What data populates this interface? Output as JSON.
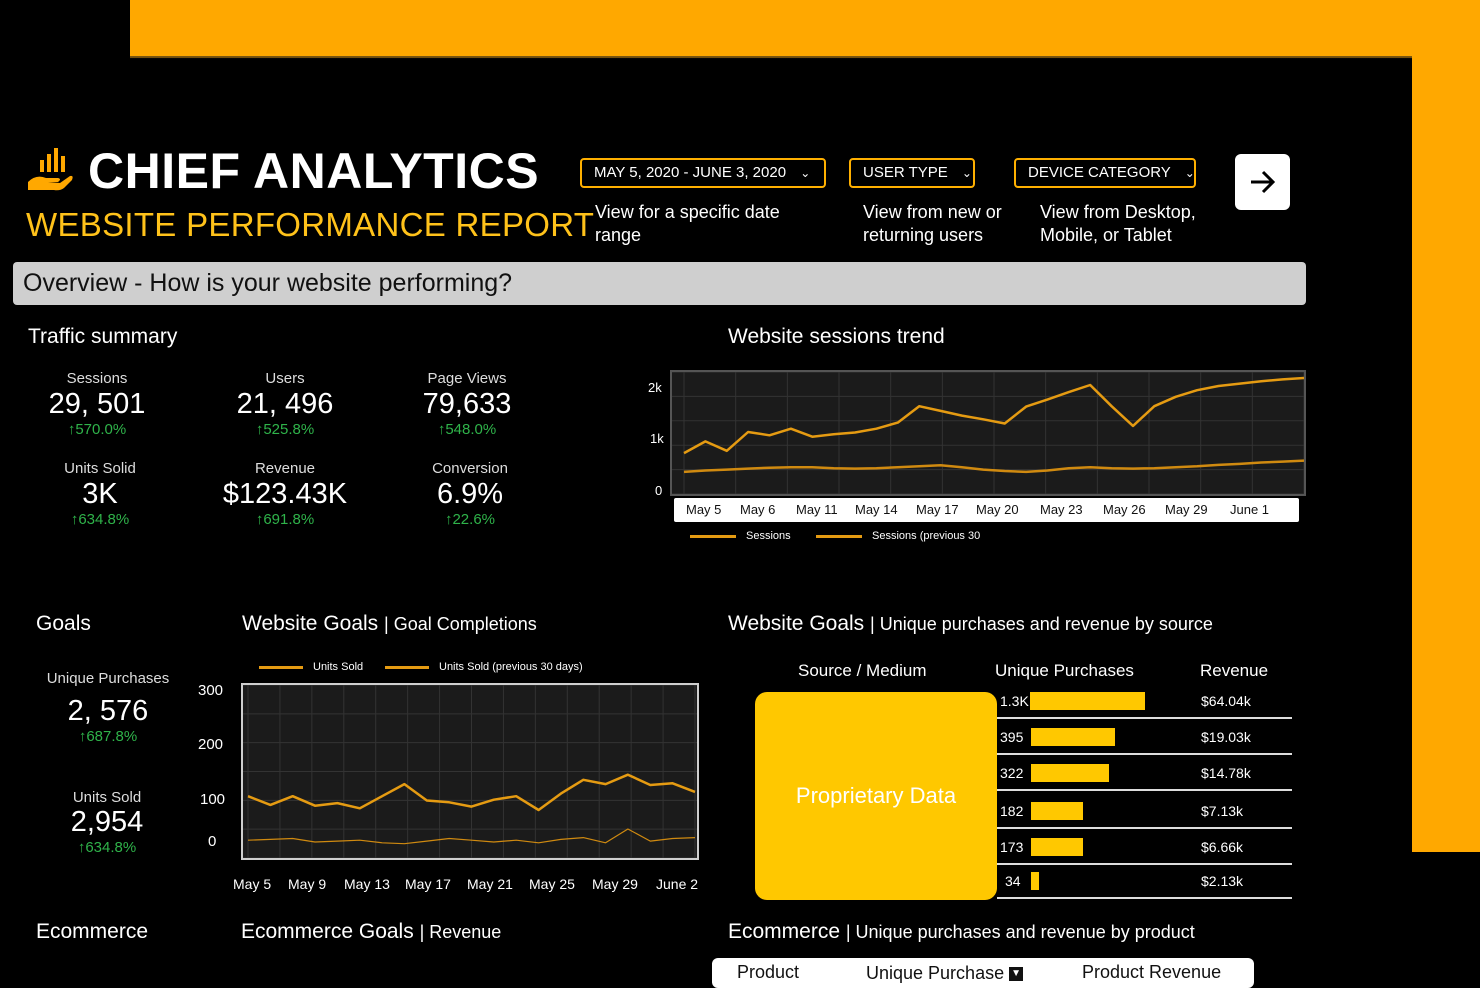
{
  "header": {
    "title": "CHIEF ANALYTICS",
    "subtitle": "WEBSITE PERFORMANCE REPORT"
  },
  "filters": [
    {
      "label": "MAY 5, 2020 - JUNE 3, 2020",
      "help": "View for a specific date range"
    },
    {
      "label": "USER TYPE",
      "help": "View from new or returning users"
    },
    {
      "label": "DEVICE CATEGORY",
      "help": "View from Desktop, Mobile, or Tablet"
    }
  ],
  "colors": {
    "accent": "#ffa800",
    "positive": "#2fb34a",
    "banner": "#cfcfcf",
    "line": "#e59b12",
    "bar": "#ffc800"
  },
  "icons": {
    "next": "arrow-right-icon",
    "logo": "hand-bar-chart-icon",
    "dropdown": "chevron-down-icon"
  },
  "overview": {
    "title": "Overview - How is your website performing?"
  },
  "traffic": {
    "title": "Traffic summary",
    "kpis": [
      {
        "label": "Sessions",
        "value": "29, 501",
        "change": "↑570.0%"
      },
      {
        "label": "Users",
        "value": "21, 496",
        "change": "↑525.8%"
      },
      {
        "label": "Page Views",
        "value": "79,633",
        "change": "↑548.0%"
      },
      {
        "label": "Units Solid",
        "value": "3K",
        "change": "↑634.8%"
      },
      {
        "label": "Revenue",
        "value": "$123.43K",
        "change": "↑691.8%"
      },
      {
        "label": "Conversion",
        "value": "6.9%",
        "change": "↑22.6%"
      }
    ]
  },
  "sessions_trend": {
    "title": "Website sessions trend"
  },
  "goals": {
    "title": "Goals",
    "kpis": [
      {
        "label": "Unique Purchases",
        "value": "2, 576",
        "change": "↑687.8%"
      },
      {
        "label": "Units Sold",
        "value": "2,954",
        "change": "↑634.8%"
      }
    ],
    "chart_title": "Website Goals",
    "chart_sub": "| Goal Completions"
  },
  "sources": {
    "title": "Website Goals",
    "sub": "| Unique purchases and revenue by source",
    "headers": [
      "Source / Medium",
      "Unique Purchases",
      "Revenue"
    ],
    "overlay": "Proprietary Data",
    "rows": [
      {
        "purchases": "1.3K",
        "fraction": 1.0,
        "revenue": "$64.04k"
      },
      {
        "purchases": "395",
        "fraction": 0.73,
        "revenue": "$19.03k"
      },
      {
        "purchases": "322",
        "fraction": 0.68,
        "revenue": "$14.78k"
      },
      {
        "purchases": "182",
        "fraction": 0.45,
        "revenue": "$7.13k"
      },
      {
        "purchases": "173",
        "fraction": 0.45,
        "revenue": "$6.66k"
      },
      {
        "purchases": "34",
        "fraction": 0.07,
        "revenue": "$2.13k"
      }
    ]
  },
  "ecommerce": {
    "title": "Ecommerce",
    "goals_title": "Ecommerce Goals",
    "goals_sub": "| Revenue",
    "product_title": "Ecommerce",
    "product_sub": "| Unique purchases and revenue by product",
    "columns": [
      "Product",
      "Unique Purchase",
      "Product Revenue"
    ]
  },
  "chart_data": [
    {
      "type": "line",
      "title": "Website sessions trend",
      "x_ticks": [
        "May 5",
        "May 6",
        "May 11",
        "May 14",
        "May 17",
        "May 20",
        "May 23",
        "May 26",
        "May 29",
        "June 1"
      ],
      "y_ticks": [
        "2k",
        "1k",
        "0"
      ],
      "ylim": [
        0,
        2300
      ],
      "series": [
        {
          "name": "Sessions",
          "values": [
            700,
            950,
            750,
            1150,
            1080,
            1220,
            1050,
            1100,
            1140,
            1220,
            1350,
            1700,
            1600,
            1500,
            1420,
            1330,
            1690,
            1840,
            2000,
            2150,
            1700,
            1280,
            1700,
            1900,
            2040,
            2130,
            2180,
            2230,
            2270,
            2300
          ]
        },
        {
          "name": "Sessions (previous 30",
          "values": [
            300,
            330,
            350,
            370,
            390,
            400,
            400,
            380,
            370,
            380,
            400,
            420,
            440,
            400,
            350,
            320,
            300,
            330,
            380,
            400,
            380,
            370,
            380,
            400,
            420,
            450,
            470,
            500,
            520,
            540
          ]
        }
      ]
    },
    {
      "type": "line",
      "title": "Website Goals | Goal Completions",
      "x_ticks": [
        "May 5",
        "May 9",
        "May 13",
        "May 17",
        "May 21",
        "May 25",
        "May 29",
        "June 2"
      ],
      "y_ticks": [
        "300",
        "200",
        "100",
        "0"
      ],
      "ylim": [
        -30,
        320
      ],
      "series": [
        {
          "name": "Units Sold",
          "values": [
            90,
            70,
            90,
            68,
            74,
            62,
            90,
            118,
            80,
            76,
            66,
            82,
            90,
            58,
            96,
            128,
            118,
            140,
            116,
            120,
            100
          ]
        },
        {
          "name": "Units Sold (previous 30 days)",
          "values": [
            -12,
            -10,
            -8,
            -16,
            -14,
            -12,
            -18,
            -20,
            -14,
            -8,
            -12,
            -16,
            -12,
            -18,
            -10,
            -6,
            -18,
            14,
            -14,
            -8,
            -6
          ]
        }
      ]
    }
  ]
}
